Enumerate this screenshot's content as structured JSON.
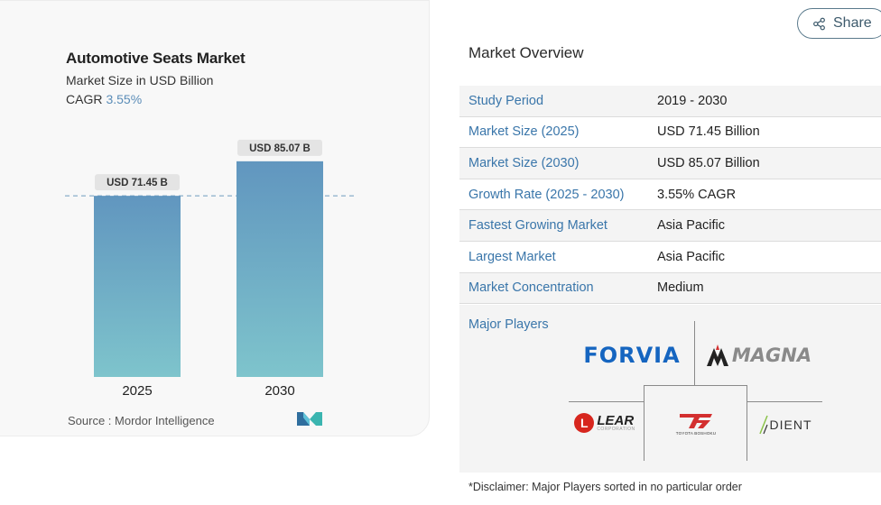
{
  "share": {
    "label": "Share",
    "icon": "share-icon"
  },
  "chart_data": {
    "type": "bar",
    "title": "Automotive Seats Market",
    "subtitle": "Market Size in USD Billion",
    "cagr_label": "CAGR",
    "cagr_value": "3.55%",
    "categories": [
      "2025",
      "2030"
    ],
    "values": [
      71.45,
      85.07
    ],
    "data_labels": [
      "USD 71.45 B",
      "USD 85.07 B"
    ],
    "ylim": [
      0,
      90
    ],
    "reference_line_value": 71.45,
    "grid": false,
    "bar_color_top": "#6196bf",
    "bar_color_bottom": "#7ec4cc"
  },
  "source": "Source :  Mordor Intelligence",
  "overview": {
    "title": "Market Overview",
    "rows": [
      {
        "key": "Study Period",
        "value": "2019 - 2030"
      },
      {
        "key": "Market Size (2025)",
        "value": "USD 71.45 Billion"
      },
      {
        "key": "Market Size (2030)",
        "value": "USD 85.07 Billion"
      },
      {
        "key": "Growth Rate (2025 - 2030)",
        "value": "3.55% CAGR"
      },
      {
        "key": "Fastest Growing Market",
        "value": "Asia Pacific"
      },
      {
        "key": "Largest Market",
        "value": "Asia Pacific"
      },
      {
        "key": "Market Concentration",
        "value": "Medium"
      }
    ]
  },
  "major_players": {
    "label": "Major Players",
    "logos": {
      "forvia": "FORVIA",
      "magna": "MAGNA",
      "lear_name": "LEAR",
      "lear_sub": "CORPORATION",
      "toyota_sub": "TOYOTA BOSHOKU",
      "adient": "DIENT"
    }
  },
  "disclaimer": "*Disclaimer: Major Players sorted in no particular order",
  "colors": {
    "accent": "#3a76aa",
    "cagr": "#5b8db8"
  }
}
